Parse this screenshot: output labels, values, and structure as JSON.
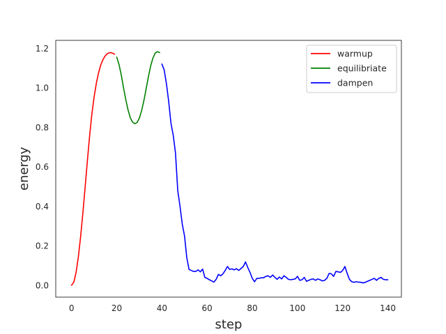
{
  "chart_data": {
    "type": "line",
    "title": "",
    "xlabel": "step",
    "ylabel": "energy",
    "xlim": [
      -7,
      146
    ],
    "ylim": [
      -0.06,
      1.24
    ],
    "xticks": [
      0,
      20,
      40,
      60,
      80,
      100,
      120,
      140
    ],
    "yticks": [
      0.0,
      0.2,
      0.4,
      0.6,
      0.8,
      1.0,
      1.2
    ],
    "xtick_labels": [
      "0",
      "20",
      "40",
      "60",
      "80",
      "100",
      "120",
      "140"
    ],
    "ytick_labels": [
      "0.0",
      "0.2",
      "0.4",
      "0.6",
      "0.8",
      "1.0",
      "1.2"
    ],
    "grid": false,
    "legend": "top-right",
    "series": [
      {
        "name": "warmup",
        "color": "#ff0000",
        "x": [
          0,
          1,
          2,
          3,
          4,
          5,
          6,
          7,
          8,
          9,
          10,
          11,
          12,
          13,
          14,
          15,
          16,
          17,
          18,
          19
        ],
        "y": [
          0.0,
          0.016,
          0.065,
          0.143,
          0.245,
          0.365,
          0.496,
          0.63,
          0.757,
          0.868,
          0.955,
          1.025,
          1.078,
          1.118,
          1.145,
          1.163,
          1.174,
          1.178,
          1.176,
          1.17
        ]
      },
      {
        "name": "equilibriate",
        "color": "#008000",
        "x": [
          20,
          21,
          22,
          23,
          24,
          25,
          26,
          27,
          28,
          29,
          30,
          31,
          32,
          33,
          34,
          35,
          36,
          37,
          38,
          39
        ],
        "y": [
          1.155,
          1.118,
          1.065,
          1.0,
          0.94,
          0.888,
          0.848,
          0.826,
          0.818,
          0.824,
          0.846,
          0.884,
          0.934,
          0.994,
          1.055,
          1.11,
          1.15,
          1.175,
          1.183,
          1.178
        ]
      },
      {
        "name": "dampen",
        "color": "#0000ff",
        "x": [
          40,
          41,
          42,
          43,
          44,
          45,
          46,
          47,
          48,
          49,
          50,
          51,
          52,
          53,
          54,
          55,
          56,
          57,
          58,
          59,
          60,
          61,
          62,
          63,
          64,
          65,
          66,
          67,
          68,
          69,
          70,
          71,
          72,
          73,
          74,
          75,
          76,
          77,
          78,
          79,
          80,
          81,
          82,
          83,
          84,
          85,
          86,
          87,
          88,
          89,
          90,
          91,
          92,
          93,
          94,
          95,
          96,
          97,
          98,
          99,
          100,
          101,
          102,
          103,
          104,
          105,
          106,
          107,
          108,
          109,
          110,
          111,
          112,
          113,
          114,
          115,
          116,
          117,
          118,
          119,
          120,
          121,
          122,
          123,
          124,
          125,
          126,
          127,
          128,
          129,
          130,
          131,
          132,
          133,
          134,
          135,
          136,
          137,
          138,
          139,
          140
        ],
        "y": [
          1.12,
          1.09,
          1.02,
          0.93,
          0.82,
          0.76,
          0.67,
          0.48,
          0.4,
          0.31,
          0.25,
          0.14,
          0.08,
          0.075,
          0.07,
          0.07,
          0.078,
          0.068,
          0.082,
          0.04,
          0.035,
          0.028,
          0.022,
          0.016,
          0.03,
          0.055,
          0.048,
          0.058,
          0.075,
          0.095,
          0.08,
          0.083,
          0.078,
          0.084,
          0.075,
          0.085,
          0.095,
          0.118,
          0.09,
          0.065,
          0.035,
          0.018,
          0.035,
          0.035,
          0.038,
          0.038,
          0.045,
          0.048,
          0.04,
          0.052,
          0.04,
          0.03,
          0.042,
          0.032,
          0.048,
          0.04,
          0.03,
          0.028,
          0.03,
          0.032,
          0.045,
          0.025,
          0.028,
          0.04,
          0.02,
          0.025,
          0.03,
          0.032,
          0.025,
          0.032,
          0.028,
          0.022,
          0.025,
          0.035,
          0.06,
          0.058,
          0.045,
          0.07,
          0.068,
          0.065,
          0.075,
          0.095,
          0.06,
          0.03,
          0.018,
          0.015,
          0.018,
          0.016,
          0.015,
          0.012,
          0.015,
          0.02,
          0.025,
          0.03,
          0.035,
          0.025,
          0.035,
          0.04,
          0.03,
          0.028,
          0.028
        ]
      }
    ]
  }
}
